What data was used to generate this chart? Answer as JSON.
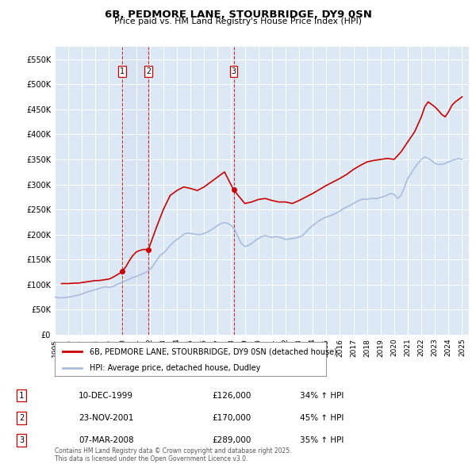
{
  "title": "6B, PEDMORE LANE, STOURBRIDGE, DY9 0SN",
  "subtitle": "Price paid vs. HM Land Registry's House Price Index (HPI)",
  "legend_line1": "6B, PEDMORE LANE, STOURBRIDGE, DY9 0SN (detached house)",
  "legend_line2": "HPI: Average price, detached house, Dudley",
  "footer": "Contains HM Land Registry data © Crown copyright and database right 2025.\nThis data is licensed under the Open Government Licence v3.0.",
  "sale_color": "#cc0000",
  "hpi_color": "#aabcdd",
  "plot_bg_color": "#dde8f5",
  "xlim_start": 1995.0,
  "xlim_end": 2025.5,
  "ylim_min": 0,
  "ylim_max": 575000,
  "yticks": [
    0,
    50000,
    100000,
    150000,
    200000,
    250000,
    300000,
    350000,
    400000,
    450000,
    500000,
    550000
  ],
  "ytick_labels": [
    "£0",
    "£50K",
    "£100K",
    "£150K",
    "£200K",
    "£250K",
    "£300K",
    "£350K",
    "£400K",
    "£450K",
    "£500K",
    "£550K"
  ],
  "transactions": [
    {
      "num": 1,
      "date": "10-DEC-1999",
      "price": 126000,
      "year": 1999.95,
      "pct": "34%",
      "marker_y": 126000
    },
    {
      "num": 2,
      "date": "23-NOV-2001",
      "price": 170000,
      "year": 2001.9,
      "pct": "45%",
      "marker_y": 170000
    },
    {
      "num": 3,
      "date": "07-MAR-2008",
      "price": 289000,
      "year": 2008.18,
      "pct": "35%",
      "marker_y": 289000
    }
  ],
  "hpi_data": {
    "years": [
      1995.0,
      1995.25,
      1995.5,
      1995.75,
      1996.0,
      1996.25,
      1996.5,
      1996.75,
      1997.0,
      1997.25,
      1997.5,
      1997.75,
      1998.0,
      1998.25,
      1998.5,
      1998.75,
      1999.0,
      1999.25,
      1999.5,
      1999.75,
      2000.0,
      2000.25,
      2000.5,
      2000.75,
      2001.0,
      2001.25,
      2001.5,
      2001.75,
      2002.0,
      2002.25,
      2002.5,
      2002.75,
      2003.0,
      2003.25,
      2003.5,
      2003.75,
      2004.0,
      2004.25,
      2004.5,
      2004.75,
      2005.0,
      2005.25,
      2005.5,
      2005.75,
      2006.0,
      2006.25,
      2006.5,
      2006.75,
      2007.0,
      2007.25,
      2007.5,
      2007.75,
      2008.0,
      2008.25,
      2008.5,
      2008.75,
      2009.0,
      2009.25,
      2009.5,
      2009.75,
      2010.0,
      2010.25,
      2010.5,
      2010.75,
      2011.0,
      2011.25,
      2011.5,
      2011.75,
      2012.0,
      2012.25,
      2012.5,
      2012.75,
      2013.0,
      2013.25,
      2013.5,
      2013.75,
      2014.0,
      2014.25,
      2014.5,
      2014.75,
      2015.0,
      2015.25,
      2015.5,
      2015.75,
      2016.0,
      2016.25,
      2016.5,
      2016.75,
      2017.0,
      2017.25,
      2017.5,
      2017.75,
      2018.0,
      2018.25,
      2018.5,
      2018.75,
      2019.0,
      2019.25,
      2019.5,
      2019.75,
      2020.0,
      2020.25,
      2020.5,
      2020.75,
      2021.0,
      2021.25,
      2021.5,
      2021.75,
      2022.0,
      2022.25,
      2022.5,
      2022.75,
      2023.0,
      2023.25,
      2023.5,
      2023.75,
      2024.0,
      2024.25,
      2024.5,
      2024.75,
      2025.0
    ],
    "values": [
      75000,
      74000,
      73500,
      74000,
      75000,
      76000,
      77500,
      79000,
      81000,
      84000,
      86000,
      88000,
      90000,
      92000,
      94000,
      96000,
      94000,
      96000,
      99000,
      102000,
      105000,
      108000,
      111000,
      114000,
      116000,
      119000,
      122000,
      125000,
      130000,
      138000,
      148000,
      158000,
      163000,
      170000,
      178000,
      185000,
      190000,
      195000,
      200000,
      203000,
      202000,
      201000,
      200000,
      200000,
      202000,
      205000,
      209000,
      213000,
      218000,
      222000,
      224000,
      222000,
      218000,
      210000,
      195000,
      182000,
      176000,
      178000,
      182000,
      188000,
      192000,
      196000,
      198000,
      196000,
      194000,
      196000,
      195000,
      193000,
      190000,
      191000,
      192000,
      193000,
      195000,
      198000,
      205000,
      212000,
      218000,
      223000,
      228000,
      232000,
      235000,
      237000,
      240000,
      243000,
      247000,
      251000,
      255000,
      258000,
      262000,
      266000,
      269000,
      271000,
      270000,
      272000,
      272000,
      272000,
      274000,
      276000,
      279000,
      282000,
      280000,
      272000,
      278000,
      294000,
      312000,
      322000,
      333000,
      342000,
      350000,
      355000,
      352000,
      348000,
      342000,
      340000,
      340000,
      342000,
      345000,
      348000,
      350000,
      352000,
      350000
    ]
  },
  "price_data": {
    "years": [
      1995.5,
      1996.0,
      1996.5,
      1996.75,
      1997.0,
      1997.25,
      1997.5,
      1997.75,
      1998.0,
      1998.25,
      1998.5,
      1998.75,
      1999.0,
      1999.25,
      1999.5,
      1999.75,
      1999.95,
      2000.25,
      2000.5,
      2000.75,
      2001.0,
      2001.25,
      2001.5,
      2001.9,
      2002.5,
      2003.0,
      2003.5,
      2004.0,
      2004.5,
      2005.0,
      2005.5,
      2006.0,
      2006.5,
      2007.0,
      2007.5,
      2008.18,
      2009.0,
      2009.5,
      2010.0,
      2010.5,
      2011.0,
      2011.5,
      2012.0,
      2012.5,
      2013.0,
      2013.5,
      2014.0,
      2014.5,
      2015.0,
      2015.5,
      2016.0,
      2016.5,
      2017.0,
      2017.5,
      2018.0,
      2018.5,
      2019.0,
      2019.5,
      2020.0,
      2020.5,
      2021.0,
      2021.5,
      2022.0,
      2022.25,
      2022.5,
      2022.75,
      2023.0,
      2023.25,
      2023.5,
      2023.75,
      2024.0,
      2024.25,
      2024.5,
      2025.0
    ],
    "values": [
      102000,
      102000,
      103000,
      103000,
      104000,
      105000,
      106000,
      107000,
      108000,
      108000,
      109000,
      110000,
      111000,
      114000,
      118000,
      122000,
      126000,
      136000,
      148000,
      158000,
      165000,
      168000,
      170000,
      170000,
      215000,
      250000,
      278000,
      288000,
      295000,
      292000,
      288000,
      295000,
      305000,
      315000,
      325000,
      289000,
      262000,
      265000,
      270000,
      272000,
      268000,
      265000,
      265000,
      262000,
      268000,
      275000,
      282000,
      290000,
      298000,
      305000,
      312000,
      320000,
      330000,
      338000,
      345000,
      348000,
      350000,
      352000,
      350000,
      365000,
      385000,
      405000,
      435000,
      455000,
      465000,
      460000,
      455000,
      448000,
      440000,
      435000,
      445000,
      458000,
      465000,
      475000
    ]
  }
}
